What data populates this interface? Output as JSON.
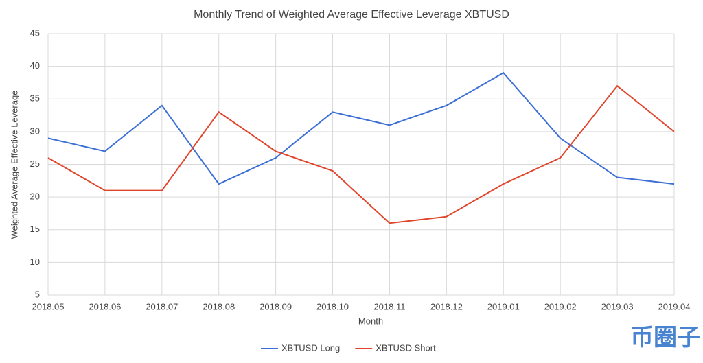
{
  "chart_data": {
    "type": "line",
    "title": "Monthly Trend of Weighted Average Effective Leverage XBTUSD",
    "x_label": "Month",
    "y_label": "Weighted Average Effective Leverage",
    "categories": [
      "2018.05",
      "2018.06",
      "2018.07",
      "2018.08",
      "2018.09",
      "2018.10",
      "2018.11",
      "2018.12",
      "2019.01",
      "2019.02",
      "2019.03",
      "2019.04"
    ],
    "series": [
      {
        "name": "XBTUSD Long",
        "color": "#3b6fd6",
        "values": [
          29,
          27,
          34,
          22,
          26,
          33,
          31,
          34,
          39,
          29,
          23,
          22
        ]
      },
      {
        "name": "XBTUSD Short",
        "color": "#e0452b",
        "values": [
          26,
          21,
          21,
          33,
          27,
          24,
          16,
          17,
          22,
          26,
          37,
          30
        ]
      }
    ],
    "ylim": [
      5,
      45
    ],
    "yticks": [
      5,
      10,
      15,
      20,
      25,
      30,
      35,
      40,
      45
    ],
    "grid": true,
    "legend": "bottom",
    "watermark": "币圈子"
  }
}
